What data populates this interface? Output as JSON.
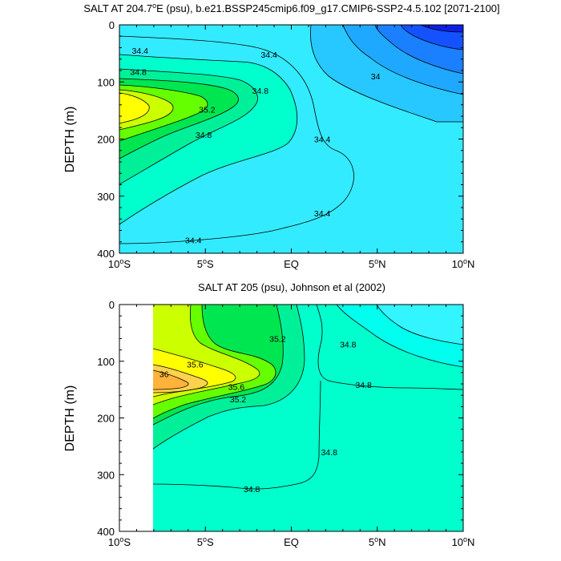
{
  "chart_data": [
    {
      "type": "contour",
      "title": "SALT AT 204.7°E (psu), b.e21.BSSP245cmip6.f09_g17.CMIP6-SSP2-4.5.102 [2071-2100]",
      "title_parts": {
        "pre": "SALT AT 204.7",
        "sup": "o",
        "post": "E (psu), b.e21.BSSP245cmip6.f09_g17.CMIP6-SSP2-4.5.102 [2071-2100]"
      },
      "ylabel": "DEPTH (m)",
      "xlabel": "",
      "xlim": [
        -10,
        10
      ],
      "ylim": [
        0,
        400
      ],
      "y_reversed": true,
      "x_ticks": [
        {
          "value": -10,
          "num": "10",
          "hemi": "S"
        },
        {
          "value": -5,
          "num": "5",
          "hemi": "S"
        },
        {
          "value": 0,
          "num": "EQ",
          "hemi": ""
        },
        {
          "value": 5,
          "num": "5",
          "hemi": "N"
        },
        {
          "value": 10,
          "num": "10",
          "hemi": "N"
        }
      ],
      "y_ticks": [
        0,
        100,
        200,
        300,
        400
      ],
      "contour_labels": [
        {
          "text": "34.4",
          "lat": -8.8,
          "depth": 45
        },
        {
          "text": "34.4",
          "lat": -1.3,
          "depth": 52
        },
        {
          "text": "34",
          "lat": 4.9,
          "depth": 90
        },
        {
          "text": "34.8",
          "lat": -8.9,
          "depth": 82
        },
        {
          "text": "34.8",
          "lat": -1.8,
          "depth": 115
        },
        {
          "text": "35.2",
          "lat": -4.9,
          "depth": 148
        },
        {
          "text": "34.8",
          "lat": -5.1,
          "depth": 192
        },
        {
          "text": "34.4",
          "lat": 1.8,
          "depth": 200
        },
        {
          "text": "34.4",
          "lat": 1.8,
          "depth": 330
        },
        {
          "text": "34.4",
          "lat": -5.7,
          "depth": 377
        }
      ]
    },
    {
      "type": "contour",
      "title": "SALT AT 205 (psu), Johnson et al (2002)",
      "ylabel": "DEPTH (m)",
      "xlabel": "",
      "xlim": [
        -10,
        10
      ],
      "ylim": [
        0,
        400
      ],
      "y_reversed": true,
      "data_lat_range": [
        -8,
        10
      ],
      "x_ticks": [
        {
          "value": -10,
          "num": "10",
          "hemi": "S"
        },
        {
          "value": -5,
          "num": "5",
          "hemi": "S"
        },
        {
          "value": 0,
          "num": "EQ",
          "hemi": ""
        },
        {
          "value": 5,
          "num": "5",
          "hemi": "N"
        },
        {
          "value": 10,
          "num": "10",
          "hemi": "N"
        }
      ],
      "y_ticks": [
        0,
        100,
        200,
        300,
        400
      ],
      "contour_labels": [
        {
          "text": "35.2",
          "lat": -0.8,
          "depth": 60
        },
        {
          "text": "34.8",
          "lat": 3.3,
          "depth": 70
        },
        {
          "text": "35.6",
          "lat": -5.6,
          "depth": 105
        },
        {
          "text": "36",
          "lat": -7.4,
          "depth": 122
        },
        {
          "text": "34.8",
          "lat": 4.2,
          "depth": 141
        },
        {
          "text": "35.6",
          "lat": -3.2,
          "depth": 145
        },
        {
          "text": "35.2",
          "lat": -3.1,
          "depth": 167
        },
        {
          "text": "34.8",
          "lat": 2.2,
          "depth": 260
        },
        {
          "text": "34.8",
          "lat": -2.3,
          "depth": 325
        }
      ]
    }
  ]
}
